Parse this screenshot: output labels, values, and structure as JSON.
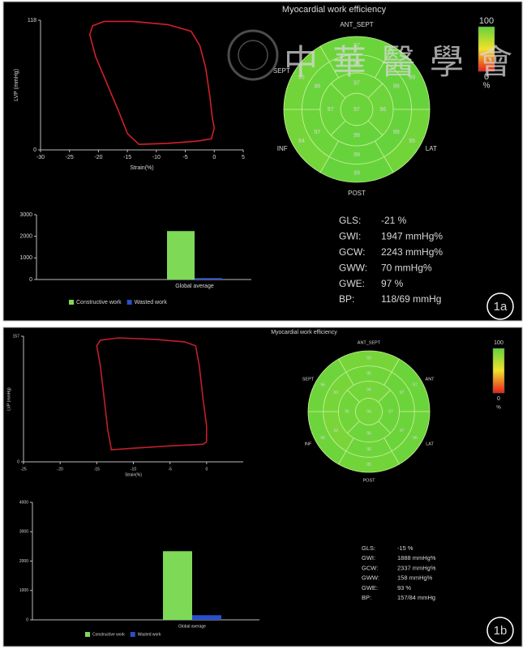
{
  "chart_data": [
    {
      "type": "line",
      "xlabel": "Strain(%)",
      "ylabel": "LVP (mmHg)",
      "xlim": [
        -30,
        5
      ],
      "ylim": [
        0,
        118
      ],
      "xticks": [
        -30,
        -25,
        -20,
        -15,
        -10,
        -5,
        0,
        5
      ],
      "yticks": [
        0,
        118
      ],
      "series": [
        {
          "color": "#d0202a",
          "x": [
            0,
            -0.5,
            -3,
            -8,
            -13,
            -15,
            -16.5,
            -18.5,
            -20.5,
            -21.5,
            -21,
            -19,
            -14,
            -8,
            -4,
            -2.5,
            -1.5,
            -0.8,
            -0.3,
            0
          ],
          "values": [
            20,
            10,
            8,
            6,
            5,
            15,
            35,
            60,
            85,
            105,
            113,
            117,
            117,
            114,
            108,
            95,
            75,
            50,
            28,
            20
          ]
        }
      ]
    },
    {
      "type": "bullseye",
      "title": "Myocardial work efficiency",
      "segment_labels": [
        "ANT_SEPT",
        "SEPT",
        "INF",
        "POST",
        "LAT"
      ],
      "values": [
        97,
        99,
        95,
        99,
        94,
        95,
        98,
        99,
        99,
        99,
        97,
        98,
        97,
        96,
        99,
        97,
        97
      ],
      "colorbar": {
        "ticks": [
          0,
          100
        ],
        "unit": "%",
        "colors": [
          "#e8201c",
          "#f2e22a",
          "#63d33c"
        ]
      }
    },
    {
      "type": "bar",
      "categories": [
        "Global average"
      ],
      "ylim": [
        0,
        3000
      ],
      "yticks": [
        0,
        1000,
        2000,
        3000
      ],
      "series": [
        {
          "name": "Constructive work",
          "color": "#7ed957",
          "values": [
            2243
          ]
        },
        {
          "name": "Wasted work",
          "color": "#2b4fc9",
          "values": [
            70
          ]
        }
      ]
    },
    {
      "type": "line",
      "xlabel": "Strain(%)",
      "ylabel": "LVP (mmHg)",
      "xlim": [
        -25,
        5
      ],
      "ylim": [
        0,
        157
      ],
      "xticks": [
        -25,
        -20,
        -15,
        -10,
        -5,
        0
      ],
      "yticks": [
        0,
        157
      ],
      "series": [
        {
          "color": "#c0202a",
          "x": [
            0,
            -0.5,
            -5,
            -10,
            -13,
            -13.5,
            -14,
            -14.5,
            -15,
            -14.5,
            -12,
            -7,
            -3,
            -1.5,
            -1,
            -0.5,
            0,
            0
          ],
          "values": [
            25,
            22,
            20,
            17,
            15,
            40,
            80,
            120,
            145,
            152,
            155,
            153,
            150,
            145,
            120,
            80,
            45,
            25
          ]
        }
      ]
    },
    {
      "type": "bullseye",
      "title": "Myocardial work efficiency",
      "segment_labels": [
        "ANT_SEPT",
        "ANT",
        "SEPT",
        "INF",
        "POST",
        "LAT"
      ],
      "values": [
        93,
        97,
        96,
        95,
        96,
        96,
        95,
        97,
        97,
        96,
        92,
        93,
        94,
        97,
        96,
        95,
        94
      ],
      "colorbar": {
        "ticks": [
          0,
          100
        ],
        "unit": "%",
        "colors": [
          "#e8201c",
          "#f2e22a",
          "#63d33c"
        ]
      }
    },
    {
      "type": "bar",
      "categories": [
        "Global average"
      ],
      "ylim": [
        0,
        4000
      ],
      "yticks": [
        0,
        1000,
        2000,
        3000,
        4000
      ],
      "series": [
        {
          "name": "Constructive work",
          "color": "#7ed957",
          "values": [
            2337
          ]
        },
        {
          "name": "Wasted work",
          "color": "#2b4fc9",
          "values": [
            158
          ]
        }
      ]
    }
  ],
  "panels": [
    {
      "label": "1a",
      "metrics": [
        {
          "key": "GLS:",
          "value": "-21 %"
        },
        {
          "key": "GWI:",
          "value": "1947 mmHg%"
        },
        {
          "key": "GCW:",
          "value": "2243 mmHg%"
        },
        {
          "key": "GWW:",
          "value": "70 mmHg%"
        },
        {
          "key": "GWE:",
          "value": "97 %"
        },
        {
          "key": "BP:",
          "value": "118/69 mmHg"
        }
      ]
    },
    {
      "label": "1b",
      "metrics": [
        {
          "key": "GLS:",
          "value": "-15 %"
        },
        {
          "key": "GWI:",
          "value": "1888 mmHg%"
        },
        {
          "key": "GCW:",
          "value": "2337 mmHg%"
        },
        {
          "key": "GWW:",
          "value": "158 mmHg%"
        },
        {
          "key": "GWE:",
          "value": "93 %"
        },
        {
          "key": "BP:",
          "value": "157/84 mmHg"
        }
      ]
    }
  ],
  "watermark": "中華醫學會"
}
